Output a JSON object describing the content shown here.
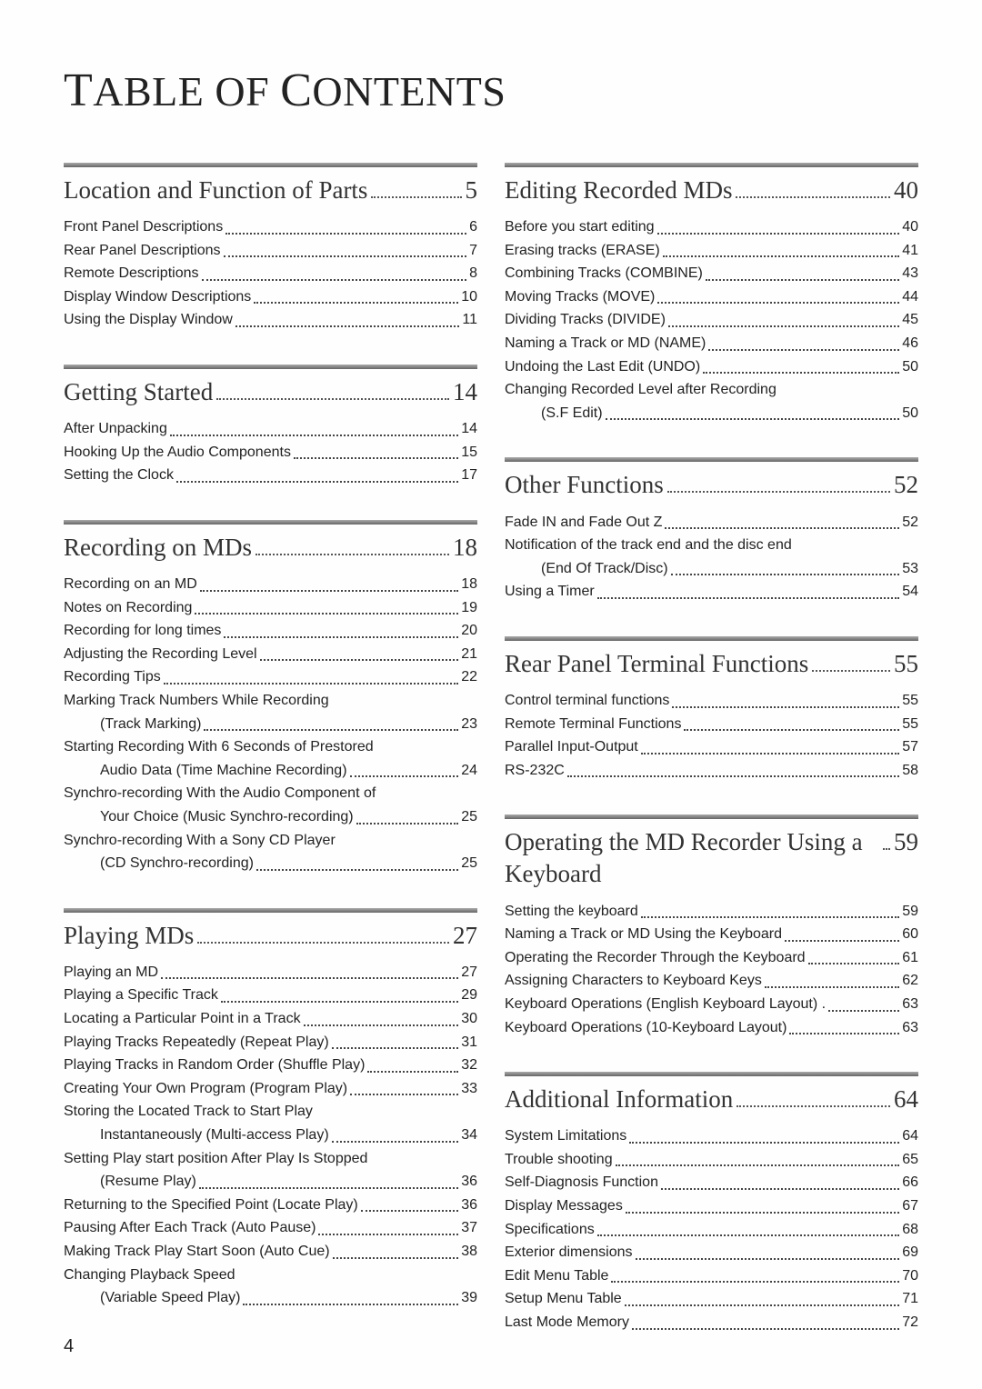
{
  "page_number": "4",
  "title_parts": [
    "T",
    "ABLE",
    " ",
    "OF",
    " ",
    "C",
    "ONTENTS"
  ],
  "left": [
    {
      "heading": "Location and Function of Parts",
      "page": "5",
      "items": [
        {
          "label": "Front Panel Descriptions",
          "page": "6"
        },
        {
          "label": "Rear Panel Descriptions",
          "page": "7"
        },
        {
          "label": "Remote Descriptions",
          "page": "8"
        },
        {
          "label": "Display Window Descriptions",
          "page": "10"
        },
        {
          "label": "Using the Display Window",
          "page": "11"
        }
      ]
    },
    {
      "heading": "Getting Started",
      "page": "14",
      "items": [
        {
          "label": "After Unpacking",
          "page": "14"
        },
        {
          "label": "Hooking Up the Audio Components",
          "page": "15"
        },
        {
          "label": "Setting the Clock",
          "page": "17"
        }
      ]
    },
    {
      "heading": "Recording on MDs",
      "page": "18",
      "items": [
        {
          "label": "Recording on an MD",
          "page": "18"
        },
        {
          "label": "Notes on Recording",
          "page": "19"
        },
        {
          "label": "Recording for long times",
          "page": "20"
        },
        {
          "label": "Adjusting the Recording Level",
          "page": "21"
        },
        {
          "label": "Recording Tips",
          "page": "22"
        },
        {
          "label": "Marking Track Numbers While Recording",
          "cont": "(Track Marking)",
          "page": "23"
        },
        {
          "label": "Starting Recording With 6 Seconds of Prestored",
          "cont": "Audio Data (Time Machine Recording)",
          "page": "24"
        },
        {
          "label": "Synchro-recording With the Audio Component of",
          "cont": "Your Choice (Music Synchro-recording)",
          "page": "25"
        },
        {
          "label": "Synchro-recording With a Sony CD Player",
          "cont": "(CD Synchro-recording)",
          "page": "25"
        }
      ]
    },
    {
      "heading": "Playing MDs",
      "page": "27",
      "items": [
        {
          "label": "Playing an MD",
          "page": "27"
        },
        {
          "label": "Playing a Specific Track",
          "page": "29"
        },
        {
          "label": "Locating a Particular Point in a Track",
          "page": "30"
        },
        {
          "label": "Playing Tracks Repeatedly (Repeat Play)",
          "page": "31"
        },
        {
          "label": "Playing Tracks in Random Order (Shuffle Play)",
          "page": "32"
        },
        {
          "label": "Creating Your Own Program (Program Play)",
          "page": "33"
        },
        {
          "label": "Storing the Located Track to Start Play",
          "cont": "Instantaneously (Multi-access Play)",
          "page": "34"
        },
        {
          "label": "Setting Play start position After Play Is Stopped",
          "cont": "(Resume Play)",
          "page": "36"
        },
        {
          "label": "Returning to the Specified Point (Locate Play)",
          "page": "36"
        },
        {
          "label": "Pausing After Each Track (Auto Pause)",
          "page": "37"
        },
        {
          "label": "Making Track Play Start Soon (Auto Cue)",
          "page": "38"
        },
        {
          "label": "Changing Playback Speed",
          "cont": "(Variable Speed Play)",
          "page": "39"
        }
      ]
    }
  ],
  "right": [
    {
      "heading": "Editing Recorded MDs",
      "page": "40",
      "items": [
        {
          "label": "Before you start editing",
          "page": "40"
        },
        {
          "label": "Erasing tracks (ERASE)",
          "page": "41"
        },
        {
          "label": "Combining Tracks (COMBINE)",
          "page": "43"
        },
        {
          "label": "Moving Tracks (MOVE)",
          "page": "44"
        },
        {
          "label": "Dividing Tracks (DIVIDE)",
          "page": "45"
        },
        {
          "label": "Naming a Track or MD (NAME)",
          "page": "46"
        },
        {
          "label": "Undoing the Last Edit (UNDO)",
          "page": "50"
        },
        {
          "label": "Changing Recorded Level after Recording",
          "cont": "(S.F Edit)",
          "page": "50"
        }
      ]
    },
    {
      "heading": "Other Functions",
      "page": "52",
      "items": [
        {
          "label": "Fade IN and Fade Out Z",
          "page": "52"
        },
        {
          "label": "Notification of the track end and the disc end",
          "cont": "(End Of Track/Disc)",
          "page": "53"
        },
        {
          "label": "Using a Timer",
          "page": "54"
        }
      ]
    },
    {
      "heading": "Rear Panel Terminal Functions",
      "page": "55",
      "items": [
        {
          "label": "Control terminal functions",
          "page": "55"
        },
        {
          "label": "Remote Terminal Functions",
          "page": "55"
        },
        {
          "label": "Parallel Input-Output",
          "page": "57"
        },
        {
          "label": "RS-232C",
          "page": "58"
        }
      ]
    },
    {
      "heading": "Operating the MD Recorder Using a Keyboard",
      "page": "59",
      "items": [
        {
          "label": "Setting the keyboard",
          "page": "59"
        },
        {
          "label": "Naming a Track or MD Using the Keyboard",
          "page": "60"
        },
        {
          "label": "Operating the Recorder Through the Keyboard",
          "page": "61"
        },
        {
          "label": "Assigning Characters to Keyboard Keys",
          "page": "62"
        },
        {
          "label": "Keyboard Operations (English Keyboard Layout) .",
          "page": "63"
        },
        {
          "label": "Keyboard Operations (10-Keyboard Layout)",
          "page": "63"
        }
      ]
    },
    {
      "heading": "Additional Information",
      "page": "64",
      "items": [
        {
          "label": "System Limitations",
          "page": "64"
        },
        {
          "label": "Trouble shooting",
          "page": "65"
        },
        {
          "label": "Self-Diagnosis Function",
          "page": "66"
        },
        {
          "label": "Display Messages",
          "page": "67"
        },
        {
          "label": "Specifications",
          "page": "68"
        },
        {
          "label": "Exterior dimensions",
          "page": "69"
        },
        {
          "label": "Edit Menu Table",
          "page": "70"
        },
        {
          "label": "Setup Menu Table",
          "page": "71"
        },
        {
          "label": "Last Mode Memory",
          "page": "72"
        }
      ]
    }
  ]
}
